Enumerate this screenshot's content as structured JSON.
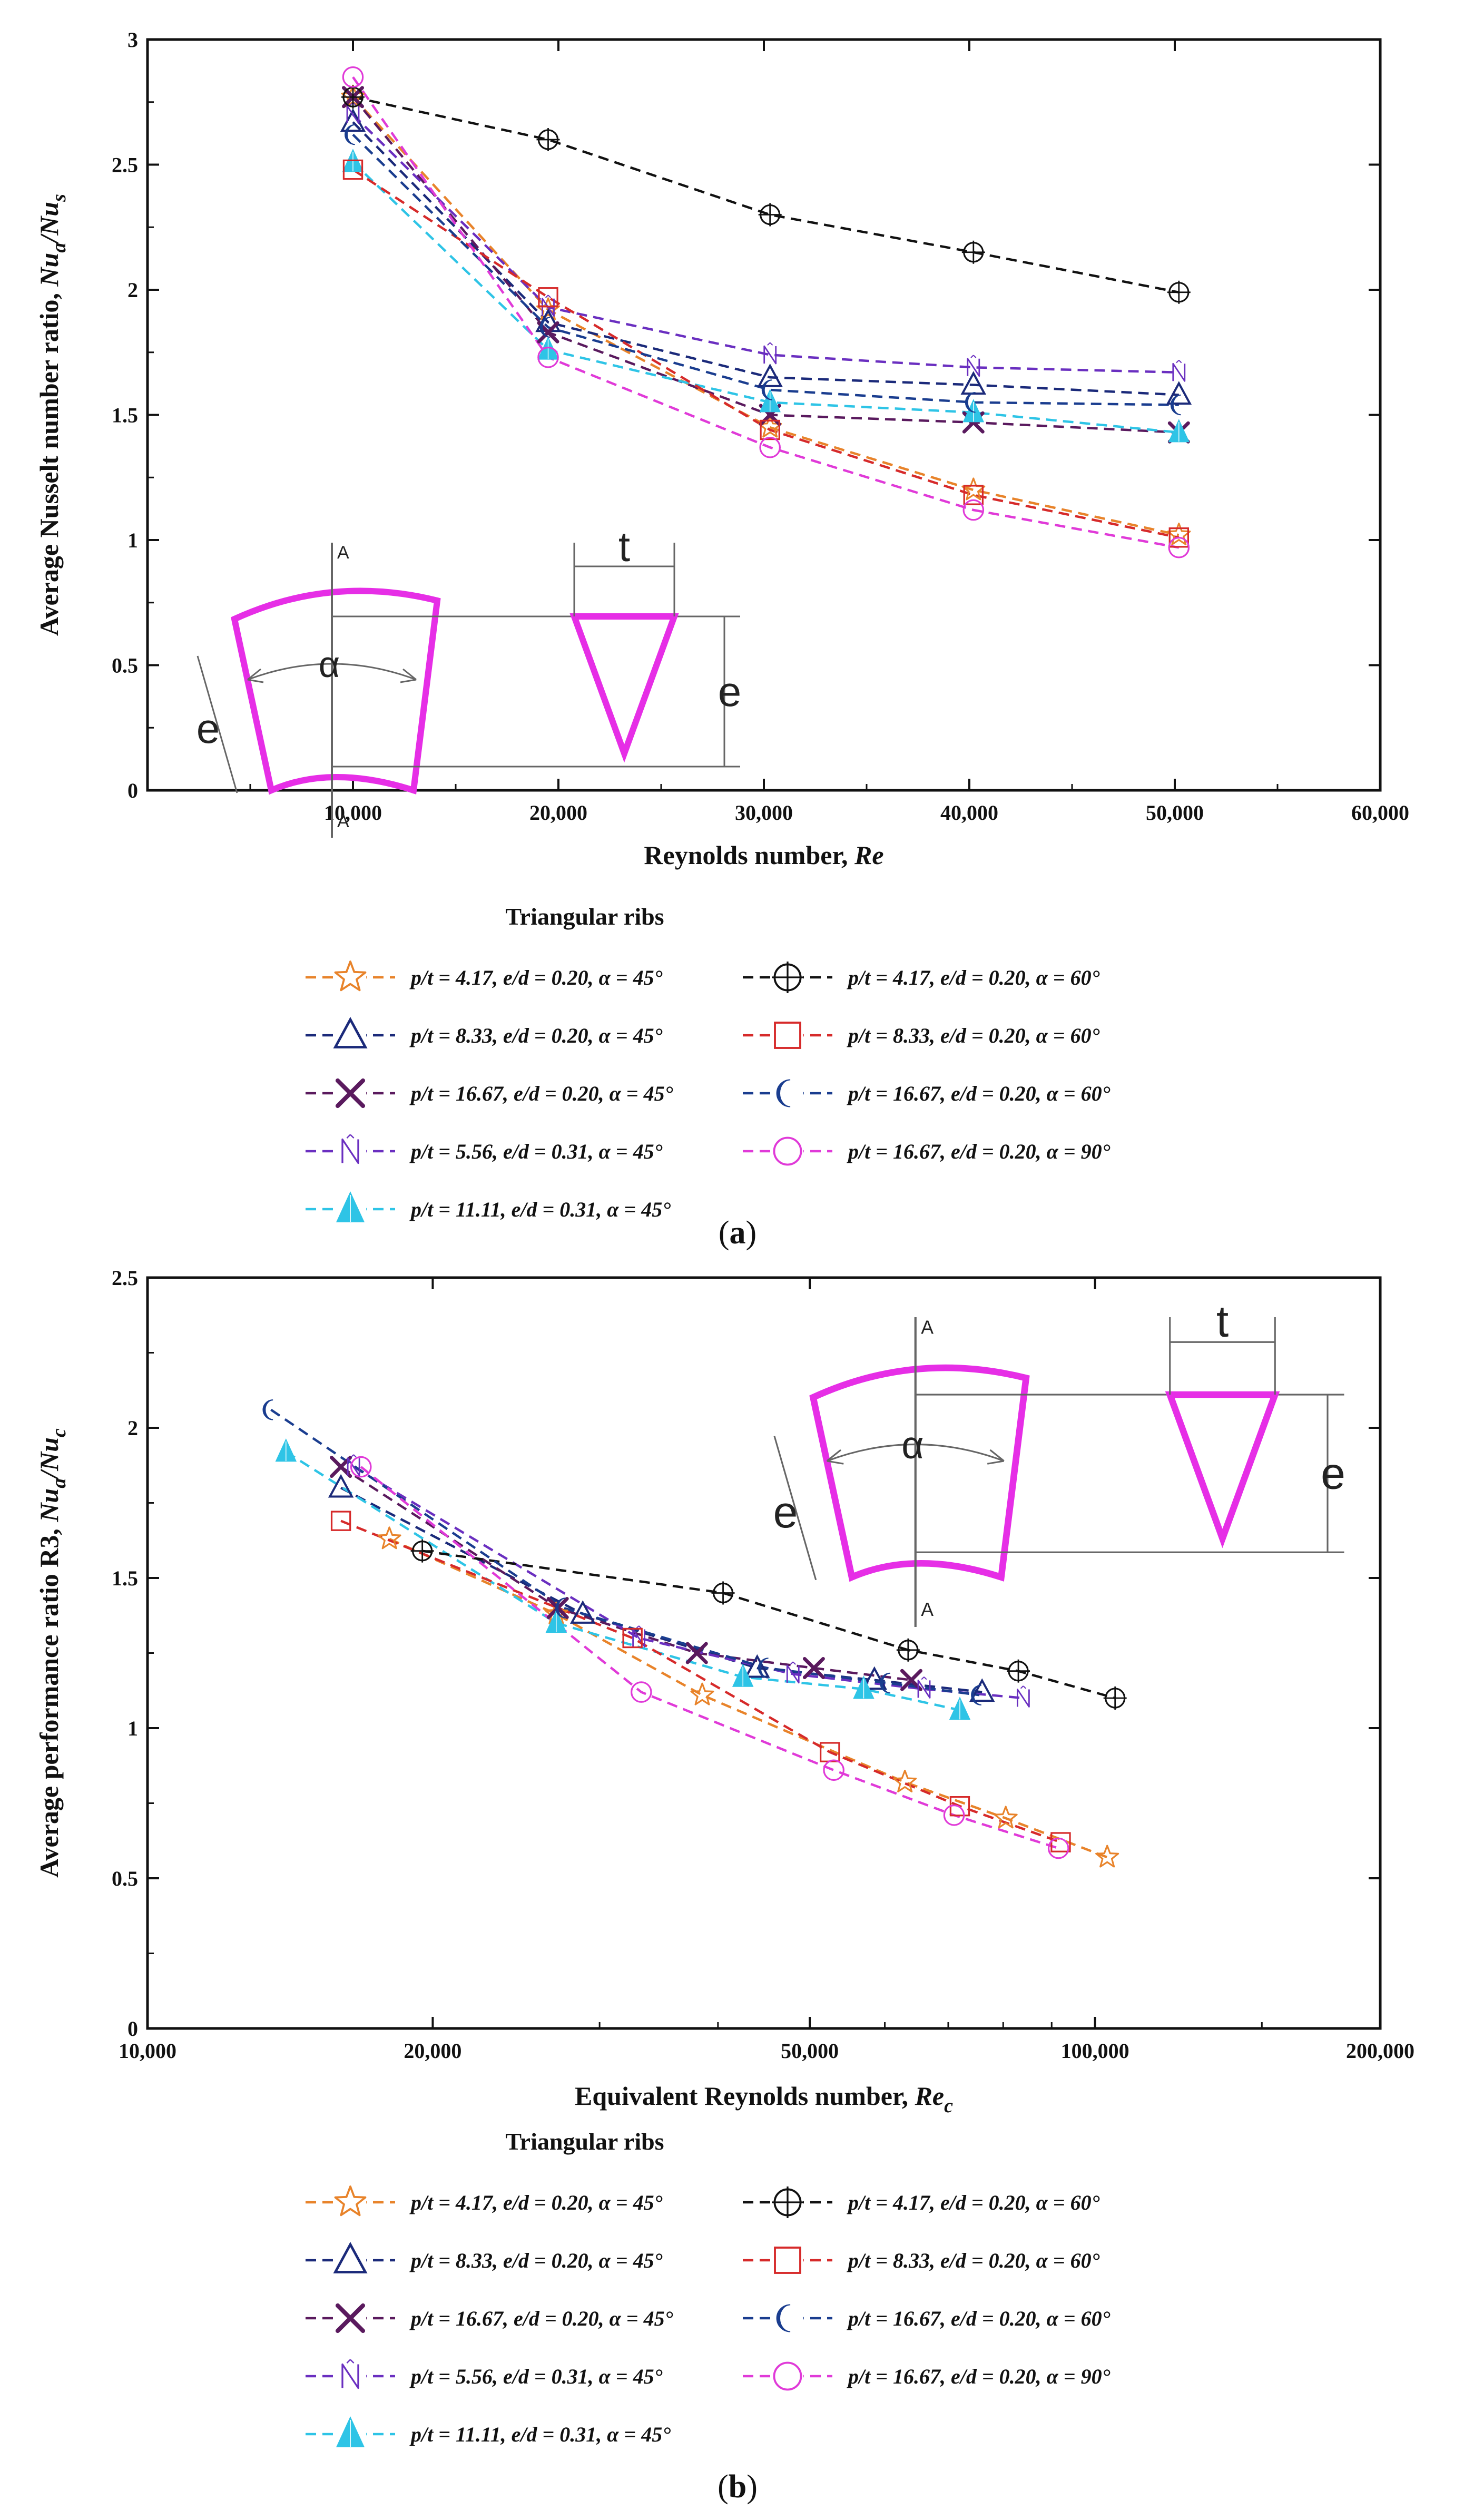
{
  "chart_data": [
    {
      "id": "a",
      "type": "line",
      "panel_label": "a",
      "ylabel_main": "Average Nusselt number ratio, ",
      "ylabel_var": "Nu",
      "ylabel_sub1": "a",
      "ylabel_slash": "/Nu",
      "ylabel_sub2": "s",
      "xlabel_main": "Reynolds number, ",
      "xlabel_var": "Re",
      "xscale": "linear",
      "xlim": [
        0,
        60000
      ],
      "ylim": [
        0,
        3
      ],
      "xticks": [
        {
          "value": 10000,
          "label": "10,000"
        },
        {
          "value": 20000,
          "label": "20,000"
        },
        {
          "value": 30000,
          "label": "30,000"
        },
        {
          "value": 40000,
          "label": "40,000"
        },
        {
          "value": 50000,
          "label": "50,000"
        },
        {
          "value": 60000,
          "label": "60,000"
        }
      ],
      "yticks": [
        {
          "value": 0,
          "label": "0"
        },
        {
          "value": 0.5,
          "label": "0.5"
        },
        {
          "value": 1,
          "label": "1"
        },
        {
          "value": 1.5,
          "label": "1.5"
        },
        {
          "value": 2,
          "label": "2"
        },
        {
          "value": 2.5,
          "label": "2.5"
        },
        {
          "value": 3,
          "label": "3"
        }
      ],
      "legend_title": "Triangular ribs",
      "series": [
        {
          "name": "p/t = 4.17, e/d = 0.20, α = 45°",
          "color": "#e8832a",
          "marker": "star",
          "x": [
            10000,
            19500,
            30300,
            40200,
            50200
          ],
          "y": [
            2.77,
            1.92,
            1.45,
            1.2,
            1.02
          ]
        },
        {
          "name": "p/t = 8.33, e/d = 0.20, α = 45°",
          "color": "#1b2a7a",
          "marker": "triangle",
          "x": [
            10000,
            19500,
            30300,
            40200,
            50200
          ],
          "y": [
            2.67,
            1.87,
            1.65,
            1.62,
            1.58
          ]
        },
        {
          "name": "p/t = 16.67, e/d = 0.20, α = 45°",
          "color": "#5a1a5e",
          "marker": "x",
          "x": [
            10000,
            19500,
            30300,
            40200,
            50200
          ],
          "y": [
            2.77,
            1.83,
            1.5,
            1.47,
            1.43
          ]
        },
        {
          "name": "p/t = 5.56, e/d = 0.31, α = 45°",
          "color": "#6a2fc0",
          "marker": "n",
          "x": [
            10000,
            19500,
            30300,
            40200,
            50200
          ],
          "y": [
            2.7,
            1.93,
            1.74,
            1.69,
            1.67
          ]
        },
        {
          "name": "p/t = 11.11, e/d = 0.31, α = 45°",
          "color": "#2ec4e6",
          "marker": "filledtri",
          "x": [
            10000,
            19500,
            30300,
            40200,
            50200
          ],
          "y": [
            2.51,
            1.76,
            1.55,
            1.51,
            1.43
          ]
        },
        {
          "name": "p/t = 4.17, e/d = 0.20, α = 60°",
          "color": "#111111",
          "marker": "circleplus",
          "x": [
            10000,
            19500,
            30300,
            40200,
            50200
          ],
          "y": [
            2.77,
            2.6,
            2.3,
            2.15,
            1.99
          ]
        },
        {
          "name": "p/t = 8.33, e/d = 0.20, α = 60°",
          "color": "#d62a2a",
          "marker": "square",
          "x": [
            10000,
            19500,
            30300,
            40200,
            50200
          ],
          "y": [
            2.48,
            1.97,
            1.44,
            1.18,
            1.01
          ]
        },
        {
          "name": "p/t = 16.67, e/d = 0.20, α = 60°",
          "color": "#1a3d8f",
          "marker": "crescent",
          "x": [
            10000,
            19500,
            30300,
            40200,
            50200
          ],
          "y": [
            2.62,
            1.85,
            1.6,
            1.55,
            1.54
          ]
        },
        {
          "name": "p/t = 16.67, e/d = 0.20, α = 90°",
          "color": "#e03ad8",
          "marker": "circle",
          "x": [
            10000,
            19500,
            30300,
            40200,
            50200
          ],
          "y": [
            2.85,
            1.73,
            1.37,
            1.12,
            0.97
          ]
        }
      ]
    },
    {
      "id": "b",
      "type": "line",
      "panel_label": "b",
      "ylabel_main": "Average performance ratio R3, ",
      "ylabel_var": "Nu",
      "ylabel_sub1": "a",
      "ylabel_slash": "/Nu",
      "ylabel_sub2": "c",
      "xlabel_main": "Equivalent Reynolds number, ",
      "xlabel_var": "Re",
      "xlabel_sub": "c",
      "xscale": "log",
      "xlim": [
        10000,
        200000
      ],
      "ylim": [
        0,
        2.5
      ],
      "xticks": [
        {
          "value": 10000,
          "label": "10,000"
        },
        {
          "value": 20000,
          "label": "20,000"
        },
        {
          "value": 50000,
          "label": "50,000"
        },
        {
          "value": 100000,
          "label": "100,000"
        },
        {
          "value": 200000,
          "label": "200,000"
        }
      ],
      "yticks": [
        {
          "value": 0,
          "label": "0"
        },
        {
          "value": 0.5,
          "label": "0.5"
        },
        {
          "value": 1,
          "label": "1"
        },
        {
          "value": 1.5,
          "label": "1.5"
        },
        {
          "value": 2,
          "label": "2"
        },
        {
          "value": 2.5,
          "label": "2.5"
        }
      ],
      "legend_title": "Triangular ribs",
      "series": [
        {
          "name": "p/t = 4.17, e/d = 0.20, α = 45°",
          "color": "#e8832a",
          "marker": "star",
          "x": [
            18000,
            27000,
            38500,
            63000,
            80500,
            103000
          ],
          "y": [
            1.63,
            1.38,
            1.11,
            0.82,
            0.7,
            0.57
          ]
        },
        {
          "name": "p/t = 8.33, e/d = 0.20, α = 45°",
          "color": "#1b2a7a",
          "marker": "triangle",
          "x": [
            16000,
            28800,
            44000,
            58500,
            76000
          ],
          "y": [
            1.8,
            1.38,
            1.2,
            1.16,
            1.12
          ]
        },
        {
          "name": "p/t = 16.67, e/d = 0.20, α = 45°",
          "color": "#5a1a5e",
          "marker": "x",
          "x": [
            16000,
            27100,
            38000,
            50500,
            64000
          ],
          "y": [
            1.87,
            1.4,
            1.25,
            1.2,
            1.16
          ]
        },
        {
          "name": "p/t = 5.56, e/d = 0.31, α = 45°",
          "color": "#6a2fc0",
          "marker": "n",
          "x": [
            16500,
            33000,
            48000,
            66000,
            84000
          ],
          "y": [
            1.87,
            1.3,
            1.18,
            1.13,
            1.1
          ]
        },
        {
          "name": "p/t = 11.11, e/d = 0.31, α = 45°",
          "color": "#2ec4e6",
          "marker": "filledtri",
          "x": [
            14000,
            27000,
            42500,
            57000,
            72000
          ],
          "y": [
            1.92,
            1.35,
            1.17,
            1.13,
            1.06
          ]
        },
        {
          "name": "p/t = 4.17, e/d = 0.20, α = 60°",
          "color": "#111111",
          "marker": "circleplus",
          "x": [
            19500,
            40500,
            63500,
            83000,
            105000
          ],
          "y": [
            1.59,
            1.45,
            1.26,
            1.19,
            1.1
          ]
        },
        {
          "name": "p/t = 8.33, e/d = 0.20, α = 60°",
          "color": "#d62a2a",
          "marker": "square",
          "x": [
            16000,
            32500,
            52500,
            72000,
            92000
          ],
          "y": [
            1.69,
            1.3,
            0.92,
            0.74,
            0.62
          ]
        },
        {
          "name": "p/t = 16.67, e/d = 0.20, α = 60°",
          "color": "#1a3d8f",
          "marker": "crescent",
          "x": [
            13500,
            27500,
            45000,
            60500,
            75500
          ],
          "y": [
            2.06,
            1.4,
            1.2,
            1.15,
            1.11
          ]
        },
        {
          "name": "p/t = 16.67, e/d = 0.20, α = 90°",
          "color": "#e03ad8",
          "marker": "circle",
          "x": [
            16800,
            33200,
            53000,
            71000,
            91500
          ],
          "y": [
            1.87,
            1.12,
            0.86,
            0.71,
            0.6
          ]
        }
      ]
    }
  ],
  "schematic": {
    "alpha": "α",
    "e": "e",
    "t": "t",
    "section": "A"
  }
}
